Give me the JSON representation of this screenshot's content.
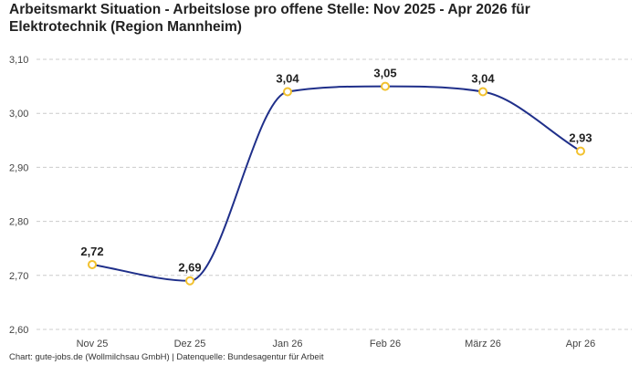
{
  "title": "Arbeitsmarkt Situation - Arbeitslose pro offene Stelle: Nov 2025 - Apr 2026 für Elektrotechnik (Region Mannheim)",
  "source": "Chart: gute-jobs.de (Wollmilchsau GmbH) | Datenquelle: Bundesagentur für Arbeit",
  "colors": {
    "line": "#1f2f8a",
    "marker": "#f2c12e",
    "grid": "#cccccc"
  },
  "chart_data": {
    "type": "line",
    "categories": [
      "Nov 25",
      "Dez 25",
      "Jan 26",
      "Feb 26",
      "März 26",
      "Apr 26"
    ],
    "values": [
      2.72,
      2.69,
      3.04,
      3.05,
      3.04,
      2.93
    ],
    "data_labels": [
      "2,72",
      "2,69",
      "3,04",
      "3,05",
      "3,04",
      "2,93"
    ],
    "yticks": [
      "2,60",
      "2,70",
      "2,80",
      "2,90",
      "3,00",
      "3,10"
    ],
    "ytick_values": [
      2.6,
      2.7,
      2.8,
      2.9,
      3.0,
      3.1
    ],
    "ylim": [
      2.6,
      3.1
    ],
    "grid": "horizontal dashed",
    "legend": "none",
    "xlabel": "",
    "ylabel": ""
  }
}
